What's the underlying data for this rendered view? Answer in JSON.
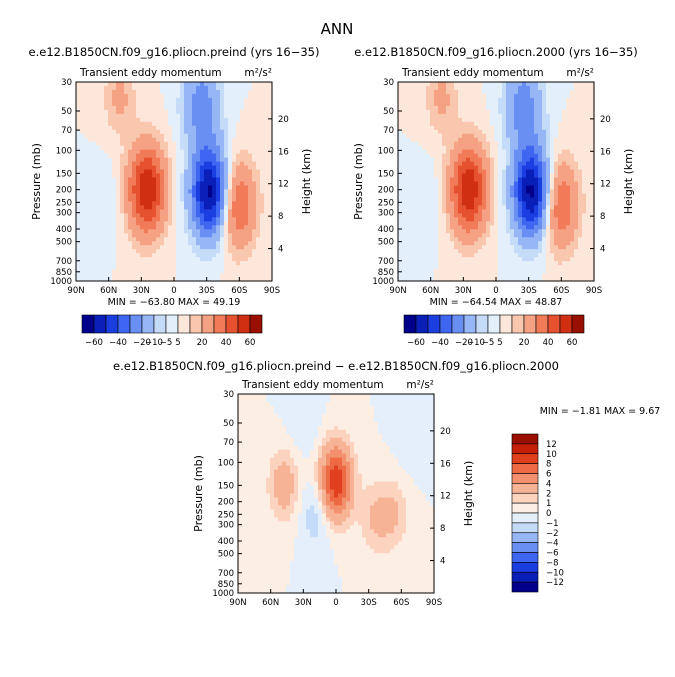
{
  "page": {
    "title": "ANN"
  },
  "chart_data": [
    {
      "type": "heatmap",
      "title": "e.e12.B1850CN.f09_g16.pliocn.preind (yrs 16−35)",
      "subtitle": "Transient eddy momentum",
      "units": "m²/s²",
      "ylabel": "Pressure (mb)",
      "y2label": "Height (km)",
      "x_ticks": [
        "90N",
        "60N",
        "30N",
        "0",
        "30S",
        "60S",
        "90S"
      ],
      "y_ticks": [
        "30",
        "50",
        "70",
        "100",
        "150",
        "200",
        "250",
        "300",
        "400",
        "500",
        "700",
        "850",
        "1000"
      ],
      "y2_ticks": [
        "20",
        "16",
        "12",
        "8",
        "4"
      ],
      "stats": "MIN = −63.80   MAX =  49.19",
      "min": -63.8,
      "max": 49.19,
      "features": [
        {
          "lat": 25,
          "p": 200,
          "value": 49.19
        },
        {
          "lat": -33,
          "p": 210,
          "value": -63.8
        },
        {
          "lat": -58,
          "p": 260,
          "value": 32
        },
        {
          "lat": 50,
          "p": 40,
          "value": 12
        },
        {
          "lat": -25,
          "p": 45,
          "value": -25
        },
        {
          "lat": 62,
          "p": 240,
          "value": -4
        }
      ],
      "colorbar": {
        "labels": [
          "−60",
          "−40",
          "−20",
          "−10",
          "−5",
          "5",
          "20",
          "40",
          "60"
        ],
        "colors": [
          "#00008b",
          "#0a1fb8",
          "#1a3ee0",
          "#3f66f0",
          "#6a8ff2",
          "#96b6f5",
          "#c4dcf8",
          "#e3f0fb",
          "#fde7da",
          "#f9c6ae",
          "#f5a183",
          "#f17b58",
          "#e65230",
          "#d02f12",
          "#991000"
        ]
      }
    },
    {
      "type": "heatmap",
      "title": "e.e12.B1850CN.f09_g16.pliocn.2000 (yrs 16−35)",
      "subtitle": "Transient eddy momentum",
      "units": "m²/s²",
      "ylabel": "Pressure (mb)",
      "y2label": "Height (km)",
      "x_ticks": [
        "90N",
        "60N",
        "30N",
        "0",
        "30S",
        "60S",
        "90S"
      ],
      "y_ticks": [
        "30",
        "50",
        "70",
        "100",
        "150",
        "200",
        "250",
        "300",
        "400",
        "500",
        "700",
        "850",
        "1000"
      ],
      "y2_ticks": [
        "20",
        "16",
        "12",
        "8",
        "4"
      ],
      "stats": "MIN = −64.54   MAX =  48.87",
      "min": -64.54,
      "max": 48.87,
      "features": [
        {
          "lat": 25,
          "p": 200,
          "value": 48.87
        },
        {
          "lat": -33,
          "p": 210,
          "value": -64.54
        },
        {
          "lat": -58,
          "p": 260,
          "value": 32
        },
        {
          "lat": 50,
          "p": 40,
          "value": 12
        },
        {
          "lat": -25,
          "p": 45,
          "value": -25
        },
        {
          "lat": 62,
          "p": 240,
          "value": -4
        }
      ],
      "colorbar": {
        "labels": [
          "−60",
          "−40",
          "−20",
          "−10",
          "−5",
          "5",
          "20",
          "40",
          "60"
        ],
        "colors": [
          "#00008b",
          "#0a1fb8",
          "#1a3ee0",
          "#3f66f0",
          "#6a8ff2",
          "#96b6f5",
          "#c4dcf8",
          "#e3f0fb",
          "#fde7da",
          "#f9c6ae",
          "#f5a183",
          "#f17b58",
          "#e65230",
          "#d02f12",
          "#991000"
        ]
      }
    },
    {
      "type": "heatmap",
      "title": "e.e12.B1850CN.f09_g16.pliocn.preind − e.e12.B1850CN.f09_g16.pliocn.2000",
      "subtitle": "Transient eddy momentum",
      "units": "m²/s²",
      "ylabel": "Pressure (mb)",
      "y2label": "Height (km)",
      "x_ticks": [
        "90N",
        "60N",
        "30N",
        "0",
        "30S",
        "60S",
        "90S"
      ],
      "y_ticks": [
        "30",
        "50",
        "70",
        "100",
        "150",
        "200",
        "250",
        "300",
        "400",
        "500",
        "700",
        "850",
        "1000"
      ],
      "y2_ticks": [
        "20",
        "16",
        "12",
        "8",
        "4"
      ],
      "stats": "MIN =   −1.81   MAX =    9.67",
      "min": -1.81,
      "max": 9.67,
      "features": [
        {
          "lat": 0,
          "p": 140,
          "value": 9.67
        },
        {
          "lat": 48,
          "p": 150,
          "value": 3
        },
        {
          "lat": -35,
          "p": 270,
          "value": 2
        },
        {
          "lat": -53,
          "p": 250,
          "value": 2
        },
        {
          "lat": 18,
          "p": 250,
          "value": -1.81
        },
        {
          "lat": 30,
          "p": 45,
          "value": -1
        },
        {
          "lat": -70,
          "p": 60,
          "value": -1
        }
      ],
      "colorbar": {
        "labels": [
          "12",
          "10",
          "8",
          "6",
          "4",
          "2",
          "1",
          "0",
          "−1",
          "−2",
          "−4",
          "−6",
          "−8",
          "−10",
          "−12"
        ],
        "colors": [
          "#991000",
          "#c41f08",
          "#e0401e",
          "#ee6a45",
          "#f3906d",
          "#f7b396",
          "#fbd3bf",
          "#fdeee4",
          "#e4effb",
          "#c4dcf8",
          "#96b6f5",
          "#6a8ff2",
          "#3f66f0",
          "#1a3ee0",
          "#0a1fb8",
          "#00008b"
        ]
      }
    }
  ]
}
